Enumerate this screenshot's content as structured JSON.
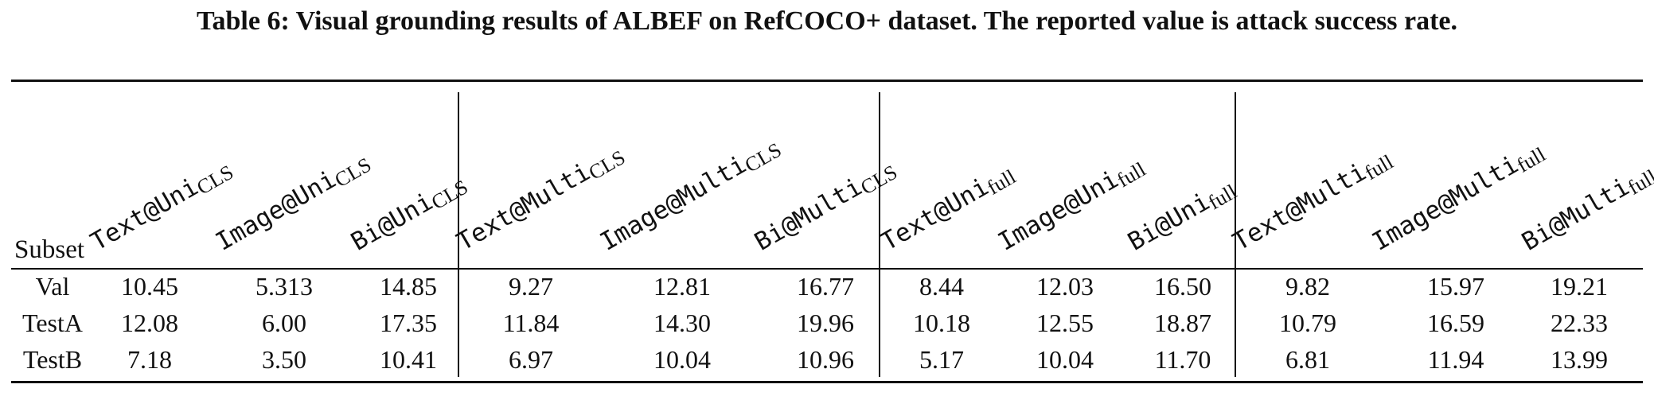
{
  "caption": "Table 6: Visual grounding results of ALBEF on RefCOCO+ dataset. The reported value is attack success rate.",
  "subset_header": "Subset",
  "columns": [
    {
      "main": "Text@Uni",
      "sub": "CLS"
    },
    {
      "main": "Image@Uni",
      "sub": "CLS"
    },
    {
      "main": "Bi@Uni",
      "sub": "CLS"
    },
    {
      "main": "Text@Multi",
      "sub": "CLS"
    },
    {
      "main": "Image@Multi",
      "sub": "CLS"
    },
    {
      "main": "Bi@Multi",
      "sub": "CLS"
    },
    {
      "main": "Text@Uni",
      "sub": "full"
    },
    {
      "main": "Image@Uni",
      "sub": "full"
    },
    {
      "main": "Bi@Uni",
      "sub": "full"
    },
    {
      "main": "Text@Multi",
      "sub": "full"
    },
    {
      "main": "Image@Multi",
      "sub": "full"
    },
    {
      "main": "Bi@Multi",
      "sub": "full"
    }
  ],
  "rows": [
    {
      "label": "Val",
      "values": [
        "10.45",
        "5.313",
        "14.85",
        "9.27",
        "12.81",
        "16.77",
        "8.44",
        "12.03",
        "16.50",
        "9.82",
        "15.97",
        "19.21"
      ]
    },
    {
      "label": "TestA",
      "values": [
        "12.08",
        "6.00",
        "17.35",
        "11.84",
        "14.30",
        "19.96",
        "10.18",
        "12.55",
        "18.87",
        "10.79",
        "16.59",
        "22.33"
      ]
    },
    {
      "label": "TestB",
      "values": [
        "7.18",
        "3.50",
        "10.41",
        "6.97",
        "10.04",
        "10.96",
        "5.17",
        "10.04",
        "11.70",
        "6.81",
        "11.94",
        "13.99"
      ]
    }
  ]
}
